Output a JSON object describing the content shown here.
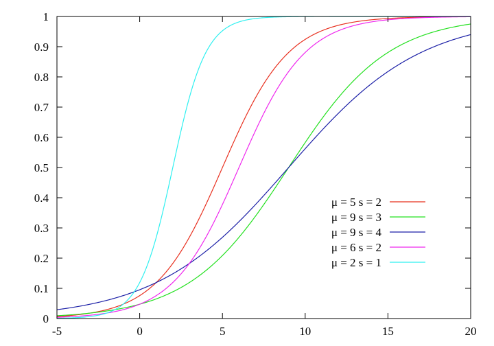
{
  "chart_data": {
    "type": "line",
    "title": "",
    "xlabel": "",
    "ylabel": "",
    "xlim": [
      -5,
      20
    ],
    "ylim": [
      0,
      1
    ],
    "x_ticks": [
      "-5",
      "0",
      "5",
      "10",
      "15",
      "20"
    ],
    "y_ticks": [
      "0",
      "0.1",
      "0.2",
      "0.3",
      "0.4",
      "0.5",
      "0.6",
      "0.7",
      "0.8",
      "0.9",
      "1"
    ],
    "grid": false,
    "legend_position": "right-middle",
    "function": "logistic CDF 1/(1+exp(-(x-mu)/s))",
    "series": [
      {
        "name": "μ = 5 s = 2",
        "mu": 5,
        "s": 2,
        "color": "#e8301f"
      },
      {
        "name": "μ = 9 s = 3",
        "mu": 9,
        "s": 3,
        "color": "#22e01e"
      },
      {
        "name": "μ = 9 s = 4",
        "mu": 9,
        "s": 4,
        "color": "#1a1ea6"
      },
      {
        "name": "μ = 6 s = 2",
        "mu": 6,
        "s": 2,
        "color": "#ef27ee"
      },
      {
        "name": "μ = 2 s = 1",
        "mu": 2,
        "s": 1,
        "color": "#2ef0f0"
      }
    ]
  }
}
